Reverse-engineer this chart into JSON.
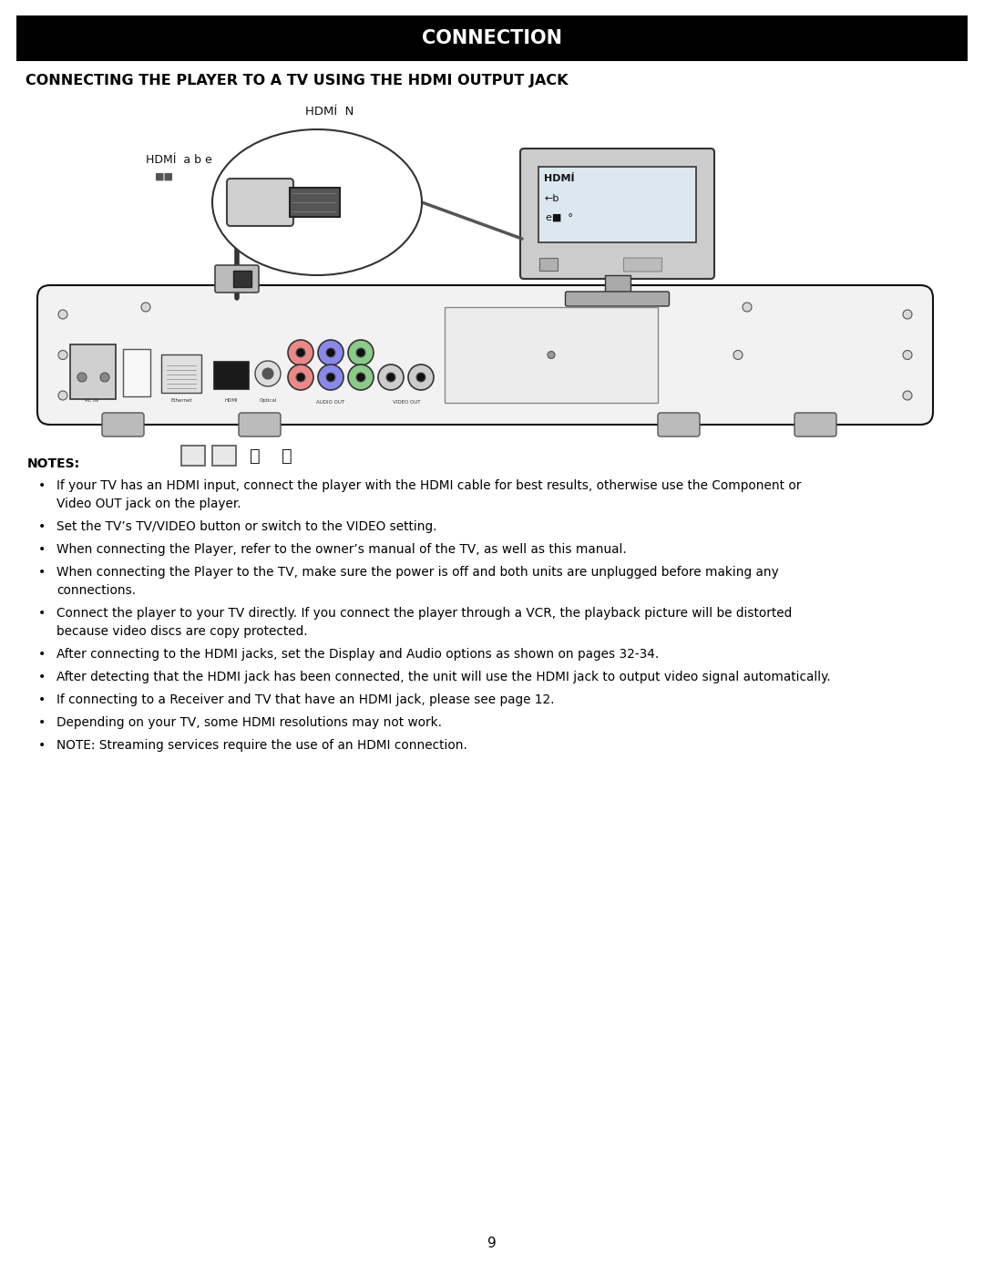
{
  "title": "CONNECTION",
  "subtitle": "CONNECTING THE PLAYER TO A TV USING THE HDMI OUTPUT JACK",
  "notes_header": "NOTES:",
  "bullet_points": [
    "If your TV has an HDMI input, connect the player with the HDMI cable for best results, otherwise use the Component or\nVideo OUT jack on the player.",
    "Set the TV’s TV/VIDEO button or switch to the VIDEO setting.",
    "When connecting the Player, refer to the owner’s manual of the TV, as well as this manual.",
    "When connecting the Player to the TV, make sure the power is off and both units are unplugged before making any\nconnections.",
    "Connect the player to your TV directly. If you connect the player through a VCR, the playback picture will be distorted\nbecause video discs are copy protected.",
    "After connecting to the HDMI jacks, set the Display and Audio options as shown on pages 32-34.",
    "After detecting that the HDMI jack has been connected, the unit will use the HDMI jack to output video signal automatically.",
    "If connecting to a Receiver and TV that have an HDMI jack, please see page 12.",
    "Depending on your TV, some HDMI resolutions may not work.",
    "NOTE: Streaming services require the use of an HDMI connection."
  ],
  "page_number": "9",
  "bg_color": "#ffffff",
  "title_bg": "#000000",
  "title_color": "#ffffff"
}
